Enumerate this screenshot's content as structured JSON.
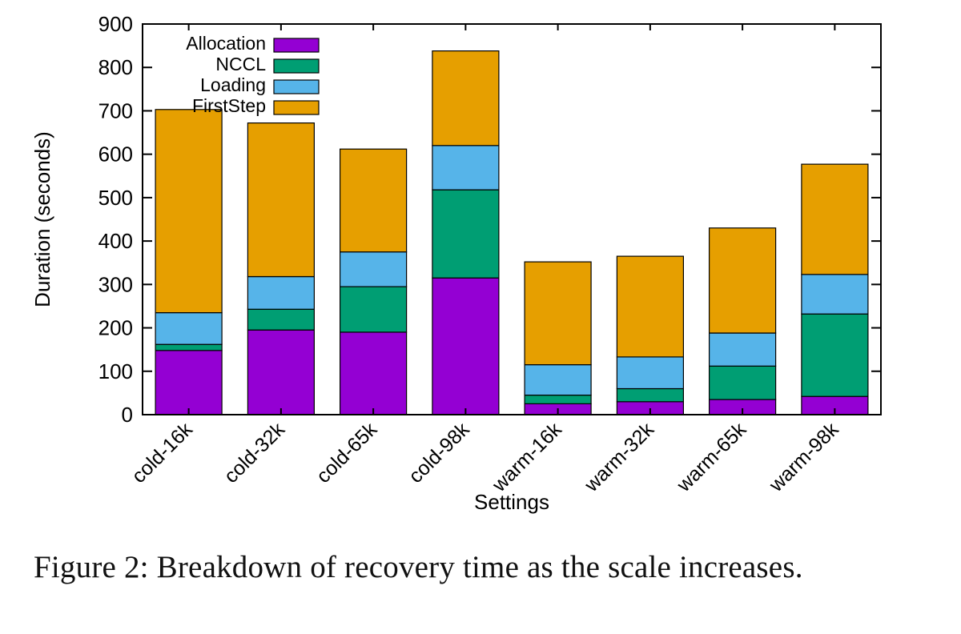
{
  "caption": "Figure 2: Breakdown of recovery time as the scale increases.",
  "chart_data": {
    "type": "bar",
    "stacked": true,
    "title": "",
    "xlabel": "Settings",
    "ylabel": "Duration (seconds)",
    "ylim": [
      0,
      900
    ],
    "ytick_step": 100,
    "grid": false,
    "legend_position": "top-left-inside",
    "categories": [
      "cold-16k",
      "cold-32k",
      "cold-65k",
      "cold-98k",
      "warm-16k",
      "warm-32k",
      "warm-65k",
      "warm-98k"
    ],
    "series": [
      {
        "name": "Allocation",
        "color": "#9400d3",
        "values": [
          148,
          195,
          190,
          315,
          25,
          30,
          35,
          42
        ]
      },
      {
        "name": "NCCL",
        "color": "#009e73",
        "values": [
          14,
          48,
          105,
          203,
          20,
          30,
          77,
          190
        ]
      },
      {
        "name": "Loading",
        "color": "#56b4e9",
        "values": [
          73,
          75,
          80,
          102,
          70,
          73,
          76,
          91
        ]
      },
      {
        "name": "FirstStep",
        "color": "#e69f00",
        "values": [
          468,
          354,
          237,
          218,
          237,
          232,
          242,
          254
        ]
      }
    ],
    "totals": [
      703,
      672,
      612,
      838,
      352,
      365,
      430,
      577
    ],
    "axis_color": "#000000",
    "bar_border_color": "#000000"
  }
}
